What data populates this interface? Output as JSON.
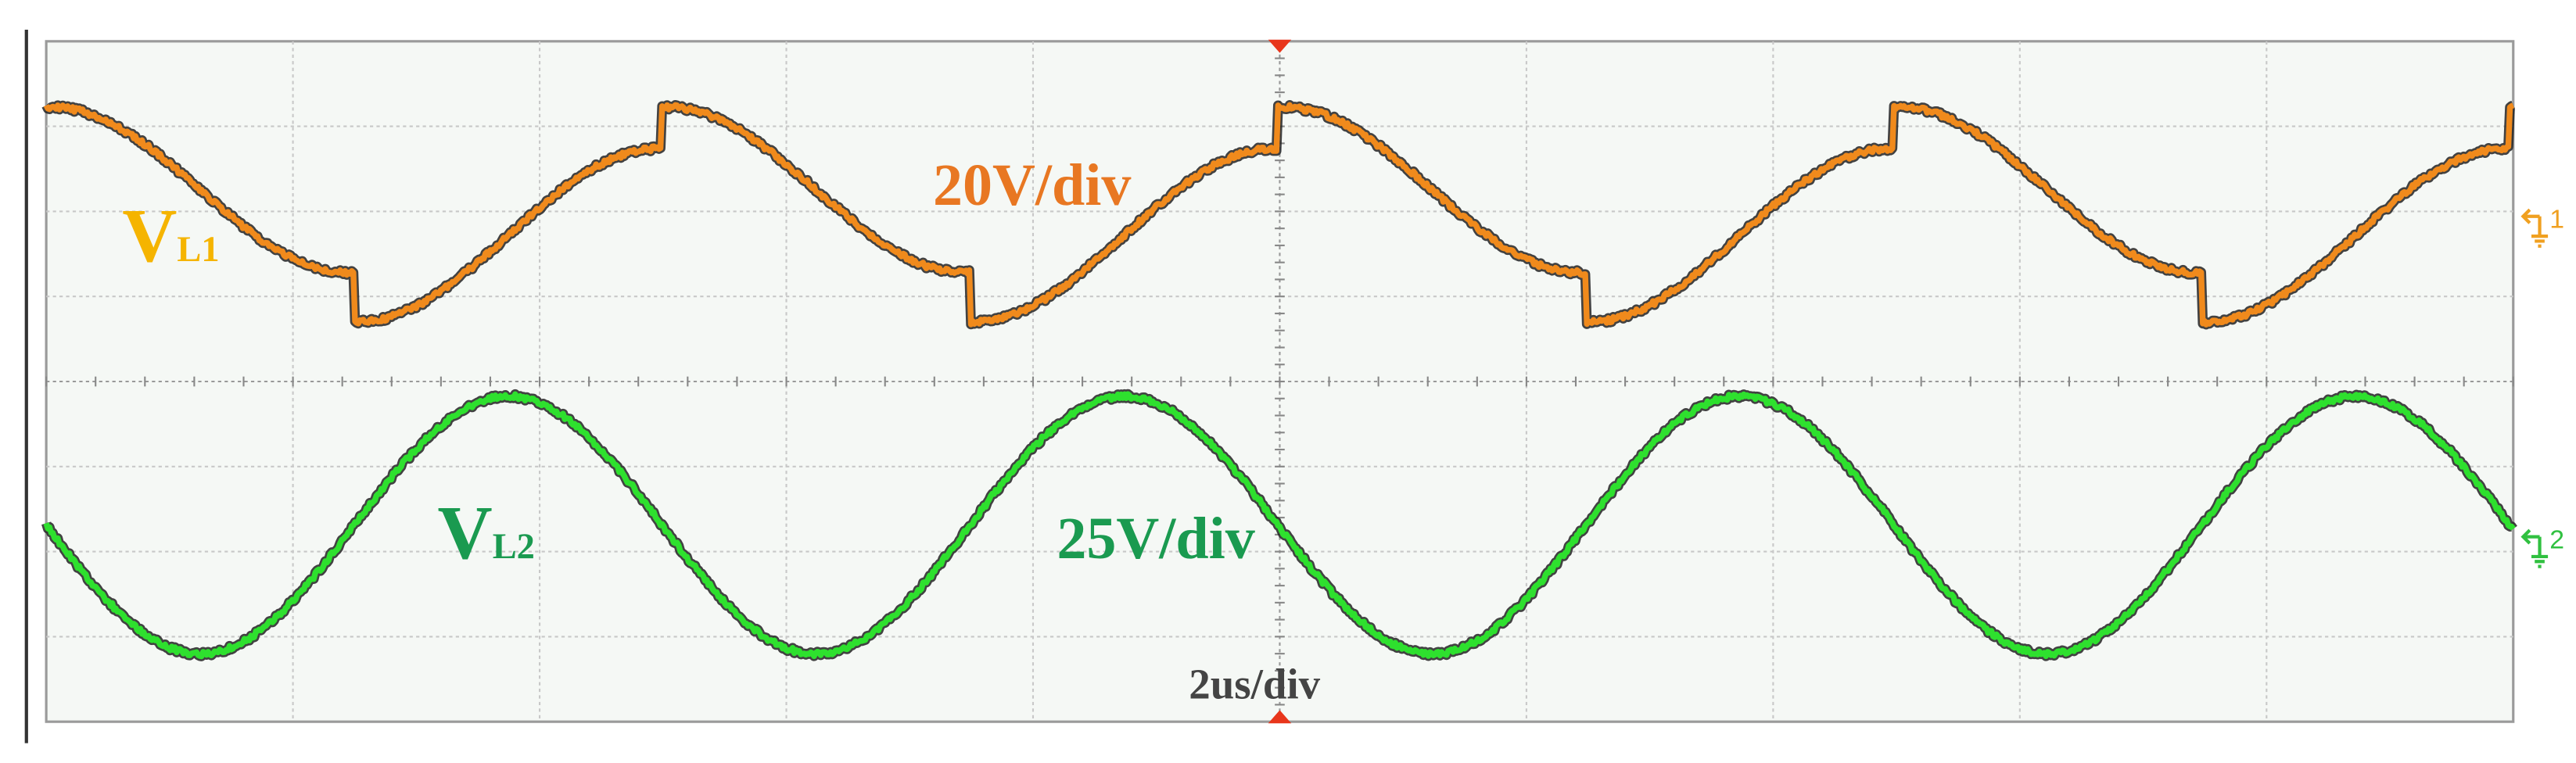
{
  "traces": [
    {
      "label": "V",
      "subscript": "L1",
      "scale": "20V/div"
    },
    {
      "label": "V",
      "subscript": "L2",
      "scale": "25V/div"
    }
  ],
  "timebase": "2us/div",
  "markers": [
    "1",
    "2"
  ]
}
